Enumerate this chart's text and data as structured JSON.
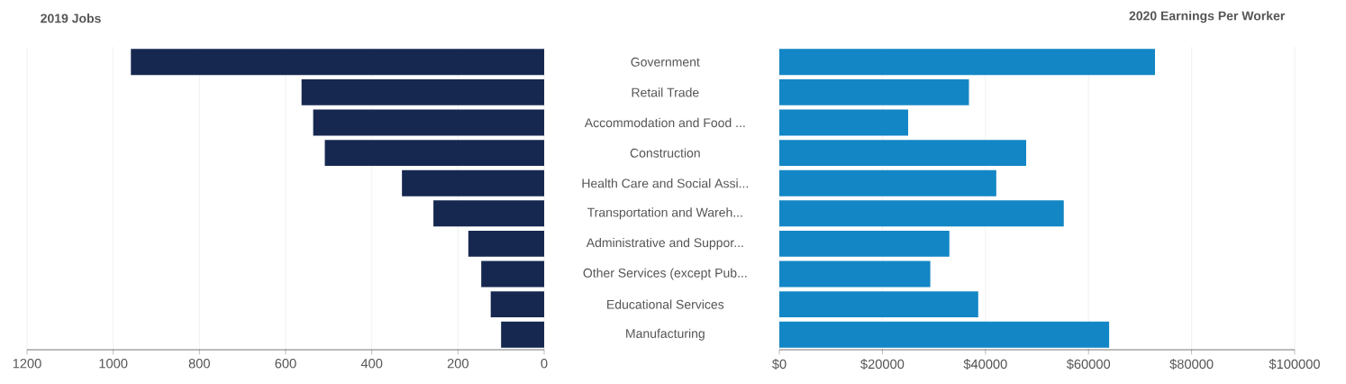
{
  "chart_data": [
    {
      "type": "bar",
      "orientation": "horizontal",
      "title": "2019 Jobs",
      "color": "#172850",
      "grid": "x",
      "categories": [
        "Government",
        "Retail Trade",
        "Accommodation and Food ...",
        "Construction",
        "Health Care and Social Assi...",
        "Transportation and Wareh...",
        "Administrative and Suppor...",
        "Other Services (except Pub...",
        "Educational Services",
        "Manufacturing"
      ],
      "values": [
        959,
        563,
        536,
        509,
        330,
        257,
        176,
        146,
        124,
        100
      ],
      "xlim": [
        1200,
        0
      ],
      "xticks": [
        1200,
        1000,
        800,
        600,
        400,
        200,
        0
      ]
    },
    {
      "type": "bar",
      "orientation": "horizontal",
      "title": "2020 Earnings Per Worker",
      "color": "#1386c5",
      "grid": "x",
      "tick_labels": "x",
      "categories": [
        null,
        null,
        null,
        null,
        null,
        null,
        null,
        null,
        null,
        null
      ],
      "values": [
        72900,
        36800,
        25000,
        47900,
        42100,
        55200,
        33000,
        29300,
        38600,
        64000
      ],
      "xlim": [
        0,
        100000
      ],
      "xticks": [
        {
          "value": 0,
          "label": "$0"
        },
        {
          "value": 20000,
          "label": "$20000"
        },
        {
          "value": 40000,
          "label": "$40000"
        },
        {
          "value": 60000,
          "label": "$60000"
        },
        {
          "value": 80000,
          "label": "$80000"
        },
        {
          "value": 100000,
          "label": "$100000"
        }
      ]
    }
  ]
}
